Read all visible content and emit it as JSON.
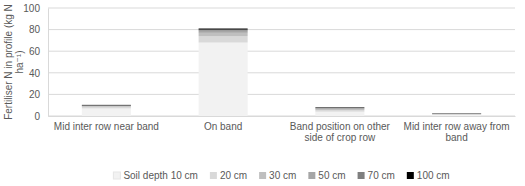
{
  "chart_data": {
    "type": "bar",
    "stacked": true,
    "grid": true,
    "legend": "bottom",
    "y_label": "Fertiliser N in profile (kg N ha⁻¹)",
    "categories": [
      "Mid inter row near band",
      "On band",
      "Band position on other side of crop row",
      "Mid inter row away from band"
    ],
    "ylim": [
      0,
      100
    ],
    "yticks": [
      0,
      20,
      40,
      60,
      80,
      100
    ],
    "series": [
      {
        "name": "Soil depth 10 cm",
        "color": "#f2f2f2",
        "values": [
          7,
          68,
          4,
          1
        ]
      },
      {
        "name": "20 cm",
        "color": "#d9d9d9",
        "values": [
          1.5,
          6,
          1.5,
          0.5
        ]
      },
      {
        "name": "30 cm",
        "color": "#bfbfbf",
        "values": [
          0.5,
          3,
          1,
          0.3
        ]
      },
      {
        "name": "50 cm",
        "color": "#a6a6a6",
        "values": [
          0.5,
          2,
          0.5,
          0.2
        ]
      },
      {
        "name": "70 cm",
        "color": "#7f7f7f",
        "values": [
          0.3,
          1,
          0.5,
          0.2
        ]
      },
      {
        "name": "100 cm",
        "color": "#000000",
        "values": [
          0.5,
          1,
          0.5,
          0.3
        ]
      }
    ]
  }
}
